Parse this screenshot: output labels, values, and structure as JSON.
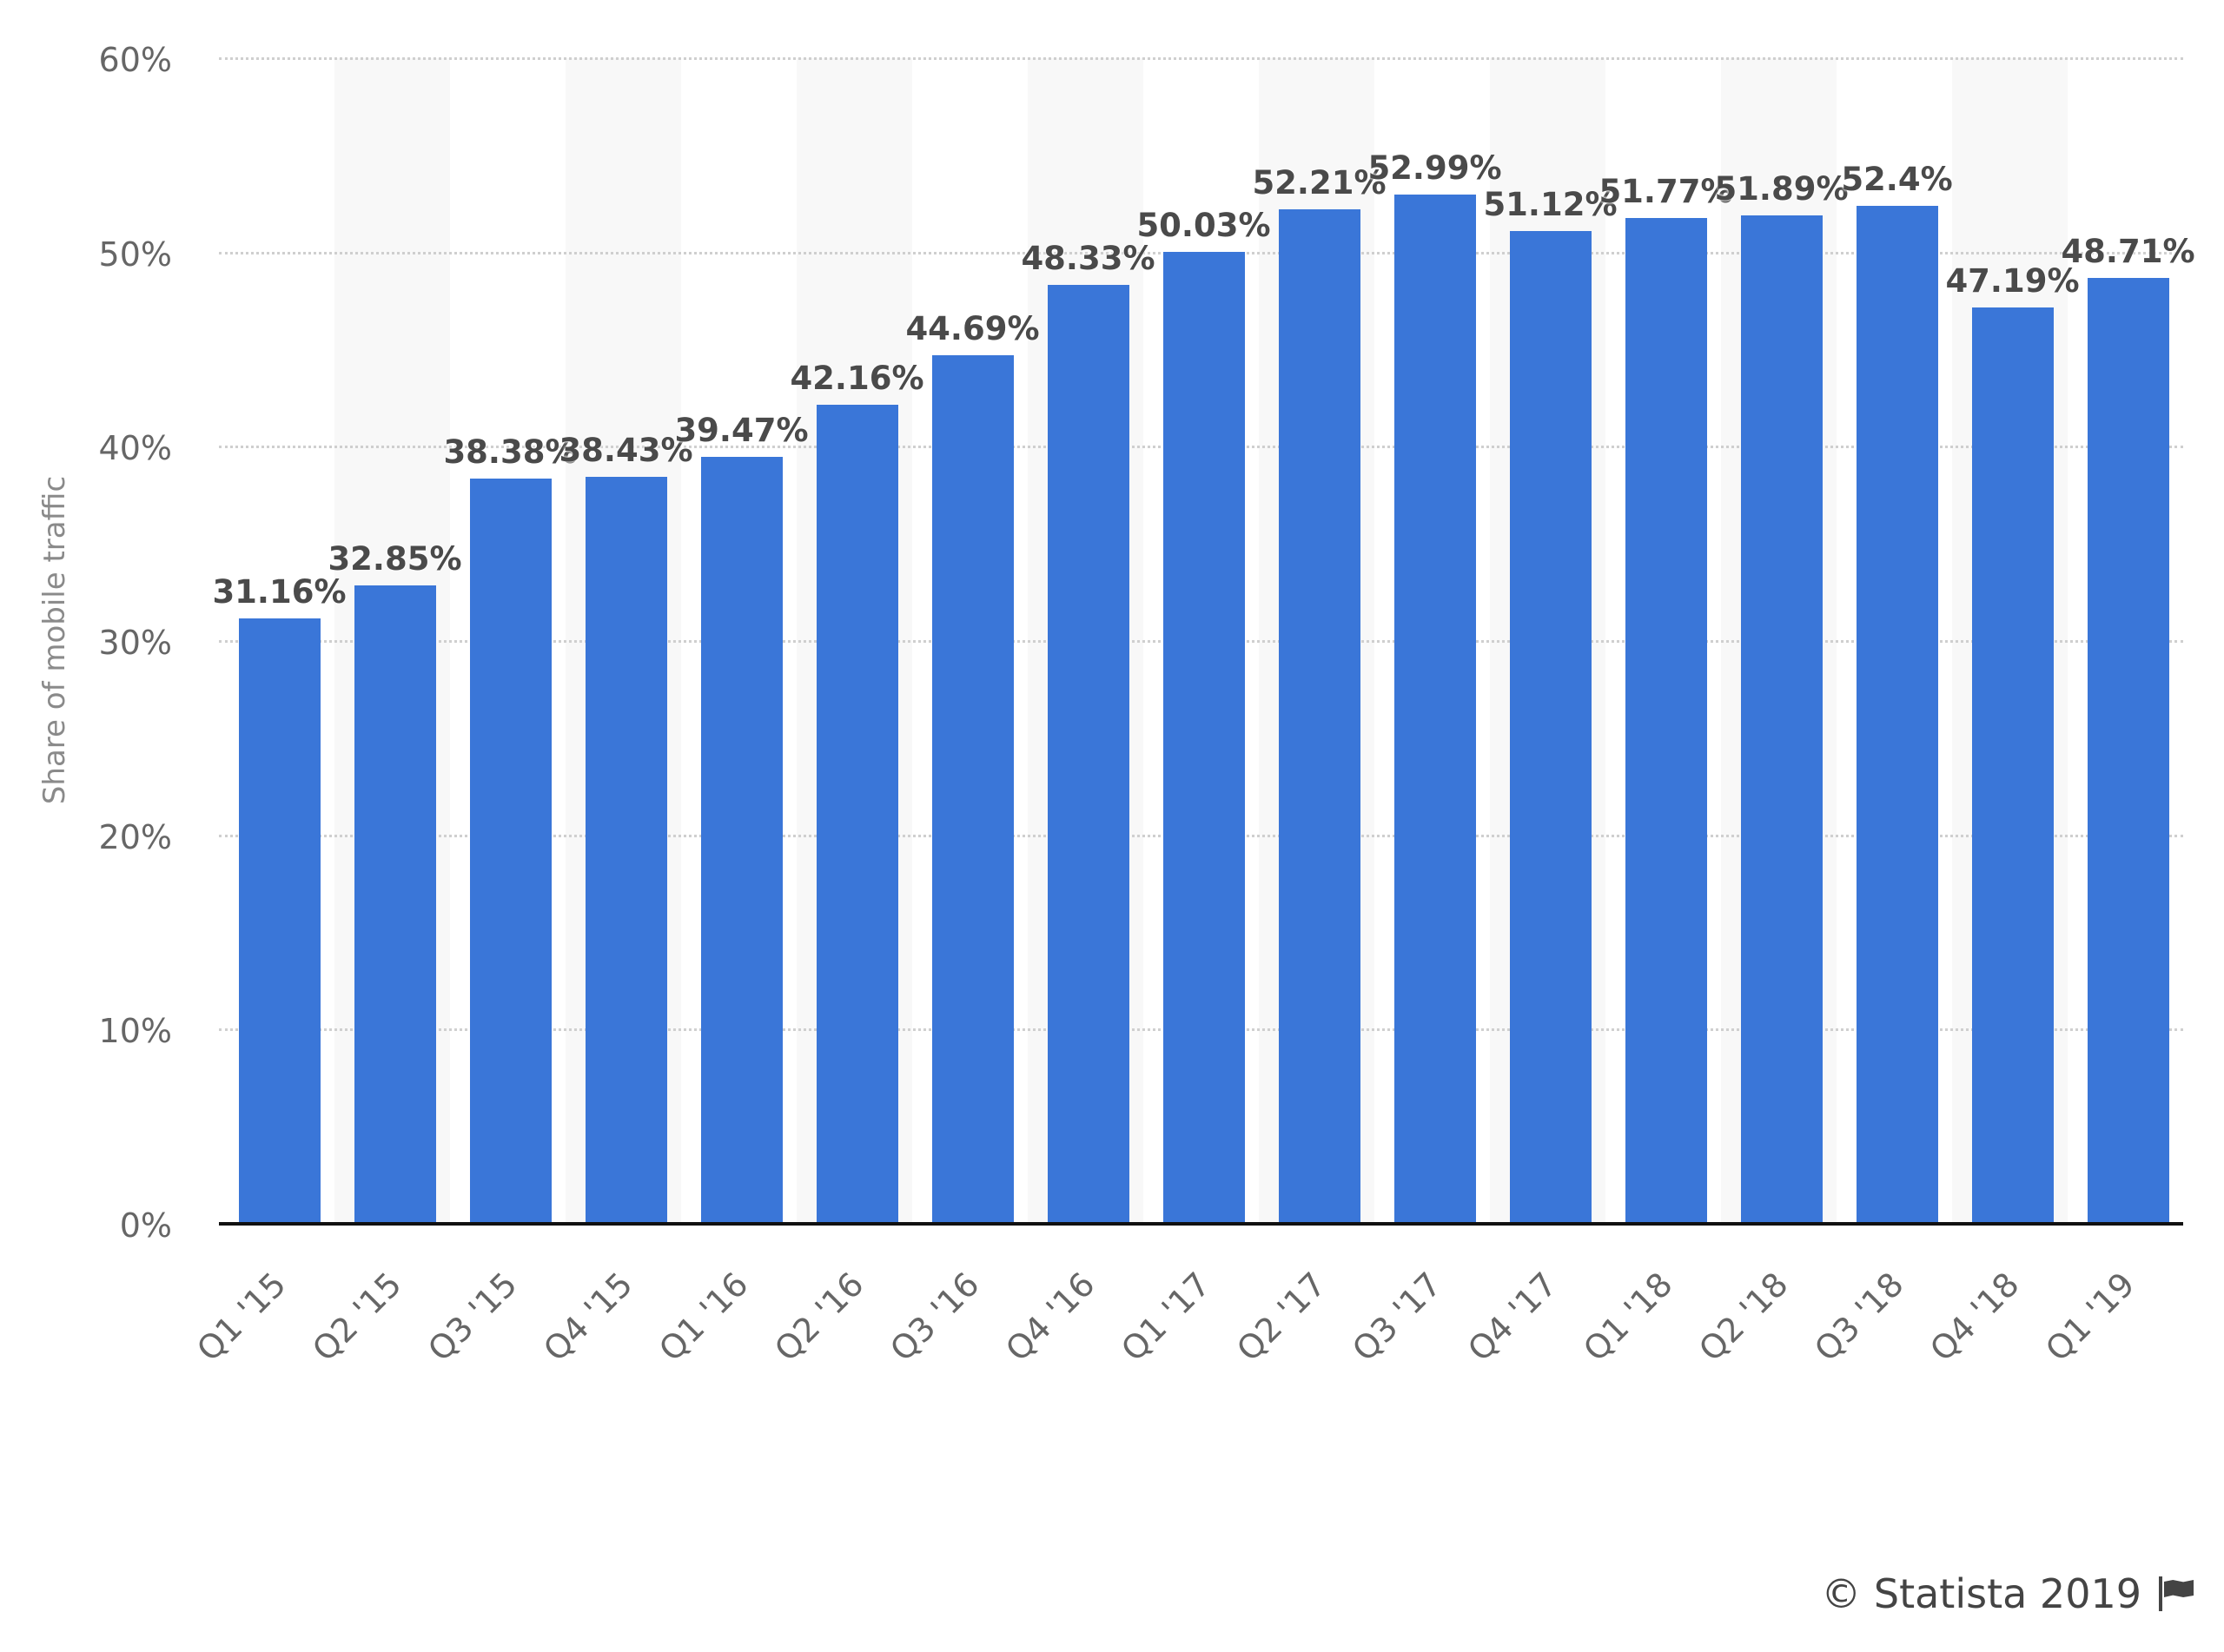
{
  "chart_data": {
    "type": "bar",
    "title": "",
    "xlabel": "",
    "ylabel": "Share of mobile traffic",
    "ylim": [
      0,
      60
    ],
    "yticks": [
      "0%",
      "10%",
      "20%",
      "30%",
      "40%",
      "50%",
      "60%"
    ],
    "grid": true,
    "legend": null,
    "categories": [
      "Q1 '15",
      "Q2 '15",
      "Q3 '15",
      "Q4 '15",
      "Q1 '16",
      "Q2 '16",
      "Q3 '16",
      "Q4 '16",
      "Q1 '17",
      "Q2 '17",
      "Q3 '17",
      "Q4 '17",
      "Q1 '18",
      "Q2 '18",
      "Q3 '18",
      "Q4 '18",
      "Q1 '19"
    ],
    "values": [
      31.16,
      32.85,
      38.38,
      38.43,
      39.47,
      42.16,
      44.69,
      48.33,
      50.03,
      52.21,
      52.99,
      51.12,
      51.77,
      51.89,
      52.4,
      47.19,
      48.71
    ],
    "value_labels": [
      "31.16%",
      "32.85%",
      "38.38%",
      "38.43%",
      "39.47%",
      "42.16%",
      "44.69%",
      "48.33%",
      "50.03%",
      "52.21%",
      "52.99%",
      "51.12%",
      "51.77%",
      "51.89%",
      "52.4%",
      "47.19%",
      "48.71%"
    ],
    "colors": {
      "bar": "#3a76d8",
      "band": "#f8f8f8",
      "grid": "#cfcfcf",
      "label": "#4a4a4a",
      "tick": "#666666"
    }
  },
  "footer": {
    "copyright": "© Statista 2019",
    "icon": "flag-icon"
  }
}
